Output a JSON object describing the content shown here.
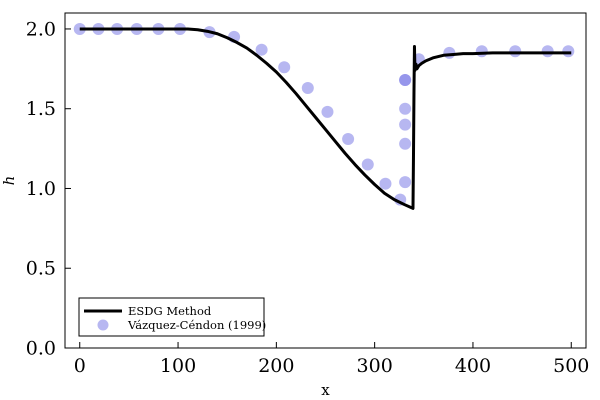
{
  "chart_data": {
    "type": "line",
    "xlabel": "x",
    "ylabel": "h",
    "xlim": [
      -15,
      515
    ],
    "ylim": [
      0.0,
      2.1
    ],
    "xticks": [
      0,
      100,
      200,
      300,
      400,
      500
    ],
    "xtick_labels": [
      "0",
      "100",
      "200",
      "300",
      "400",
      "500"
    ],
    "yticks": [
      0.0,
      0.5,
      1.0,
      1.5,
      2.0
    ],
    "ytick_labels": [
      "0.0",
      "0.5",
      "1.0",
      "1.5",
      "2.0"
    ],
    "grid": false,
    "legend_position": "bottom-left",
    "series": [
      {
        "name": "ESDG Method",
        "style": "line",
        "color": "#000000",
        "x": [
          0,
          50,
          100,
          110,
          120,
          130,
          140,
          150,
          160,
          170,
          180,
          190,
          200,
          210,
          220,
          230,
          240,
          250,
          260,
          270,
          280,
          290,
          300,
          310,
          320,
          330,
          339,
          339.5,
          340,
          340.5,
          341,
          342,
          343,
          345,
          348,
          352,
          356,
          360,
          370,
          380,
          390,
          400,
          420,
          450,
          500
        ],
        "y": [
          2.0,
          2.0,
          2.0,
          2.0,
          1.995,
          1.985,
          1.97,
          1.945,
          1.915,
          1.88,
          1.835,
          1.785,
          1.73,
          1.665,
          1.595,
          1.52,
          1.445,
          1.37,
          1.295,
          1.22,
          1.15,
          1.085,
          1.025,
          0.97,
          0.93,
          0.9,
          0.875,
          1.2,
          1.6,
          1.89,
          1.74,
          1.78,
          1.75,
          1.77,
          1.785,
          1.8,
          1.81,
          1.82,
          1.835,
          1.84,
          1.845,
          1.845,
          1.85,
          1.85,
          1.85
        ]
      },
      {
        "name": "Vázquez-Céndon (1999)",
        "style": "scatter",
        "color": "#7b7be6",
        "x": [
          0,
          19,
          38,
          58,
          80,
          102,
          132,
          157,
          185,
          208,
          232,
          252,
          273,
          293,
          311,
          326,
          331,
          331,
          331,
          331,
          331,
          331,
          345,
          376,
          409,
          443,
          476,
          497
        ],
        "y": [
          2.0,
          2.0,
          2.0,
          2.0,
          2.0,
          2.0,
          1.98,
          1.95,
          1.87,
          1.76,
          1.63,
          1.48,
          1.31,
          1.15,
          1.03,
          0.93,
          1.04,
          1.28,
          1.4,
          1.5,
          1.68,
          1.68,
          1.81,
          1.85,
          1.86,
          1.86,
          1.86,
          1.86
        ]
      }
    ]
  }
}
